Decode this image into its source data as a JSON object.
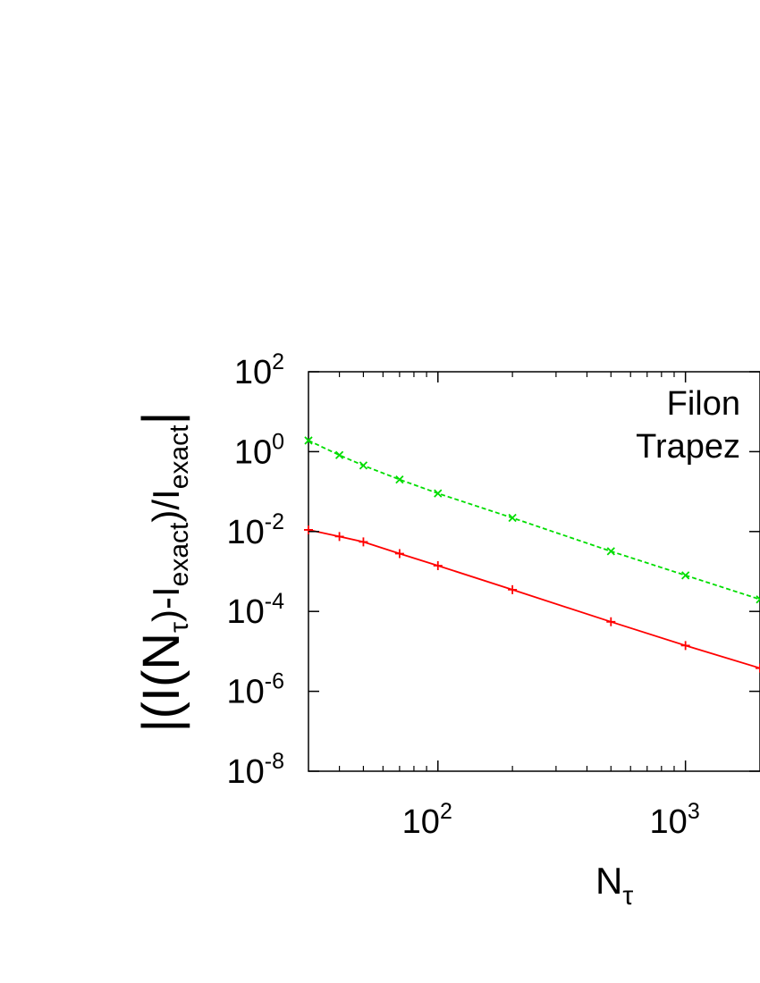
{
  "chart_data": {
    "type": "line",
    "x_scale": "log",
    "y_scale": "log",
    "xlim": [
      30,
      2000
    ],
    "ylim": [
      1e-08,
      100
    ],
    "x_ticks": [
      {
        "value": 100,
        "base": "10",
        "exp": "2"
      },
      {
        "value": 1000,
        "base": "10",
        "exp": "3"
      }
    ],
    "y_ticks": [
      {
        "value": 100,
        "base": "10",
        "exp": "2"
      },
      {
        "value": 1,
        "base": "10",
        "exp": "0"
      },
      {
        "value": 0.01,
        "base": "10",
        "exp": "-2"
      },
      {
        "value": 0.0001,
        "base": "10",
        "exp": "-4"
      },
      {
        "value": 1e-06,
        "base": "10",
        "exp": "-6"
      },
      {
        "value": 1e-08,
        "base": "10",
        "exp": "-8"
      }
    ],
    "xlabel": {
      "main": "N",
      "sub": "τ"
    },
    "ylabel": {
      "pre": "|(I(N",
      "sub1": "τ",
      "mid": ")-I",
      "sub2": "exact",
      "mid2": ")/I",
      "sub3": "exact",
      "post": "|"
    },
    "legend": {
      "placement": "top-right",
      "entries": [
        "Filon",
        "Trapez"
      ]
    },
    "series": [
      {
        "name": "Filon",
        "color": "#ff0000",
        "marker": "plus",
        "dash": "solid",
        "x": [
          30,
          40,
          50,
          70,
          100,
          200,
          500,
          1000,
          2000
        ],
        "y": [
          0.011,
          0.0075,
          0.0055,
          0.0028,
          0.0014,
          0.00035,
          5.5e-05,
          1.4e-05,
          3.8e-06
        ]
      },
      {
        "name": "Trapez",
        "color": "#00dd00",
        "marker": "cross",
        "dash": "dashed",
        "x": [
          30,
          40,
          50,
          70,
          100,
          200,
          500,
          1000,
          2000
        ],
        "y": [
          1.9,
          0.82,
          0.45,
          0.2,
          0.09,
          0.022,
          0.0032,
          0.0008,
          0.0002
        ]
      }
    ]
  }
}
